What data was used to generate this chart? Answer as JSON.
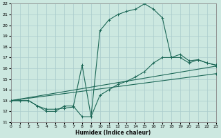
{
  "xlabel": "Humidex (Indice chaleur)",
  "xlim": [
    0,
    23
  ],
  "ylim": [
    11,
    22
  ],
  "xticks": [
    0,
    1,
    2,
    3,
    4,
    5,
    6,
    7,
    8,
    9,
    10,
    11,
    12,
    13,
    14,
    15,
    16,
    17,
    18,
    19,
    20,
    21,
    22,
    23
  ],
  "yticks": [
    11,
    12,
    13,
    14,
    15,
    16,
    17,
    18,
    19,
    20,
    21,
    22
  ],
  "bg_color": "#cce8e0",
  "grid_color": "#aacccc",
  "line_color": "#1a6655",
  "curve1_x": [
    0,
    1,
    2,
    3,
    4,
    5,
    6,
    7,
    8,
    9,
    10,
    11,
    12,
    13,
    14,
    15,
    16,
    17,
    18,
    19,
    20,
    21,
    22,
    23
  ],
  "curve1_y": [
    13,
    13,
    13,
    12.5,
    12,
    12,
    12.5,
    12.5,
    11.5,
    11.5,
    19.5,
    20.5,
    21,
    21.3,
    21.5,
    22,
    21.5,
    20.7,
    17,
    17,
    16.5,
    16.8,
    16.5,
    16.3
  ],
  "curve2_x": [
    0,
    1,
    2,
    3,
    4,
    5,
    6,
    7,
    8,
    9,
    10,
    11,
    12,
    13,
    14,
    15,
    16,
    17,
    18,
    19,
    20,
    21,
    22,
    23
  ],
  "curve2_y": [
    13,
    13,
    13,
    12.5,
    12.2,
    12.2,
    12.3,
    12.4,
    16.3,
    11.5,
    13.5,
    14.0,
    14.5,
    14.8,
    15.2,
    15.7,
    16.5,
    17.0,
    17.0,
    17.3,
    16.7,
    16.8,
    16.5,
    16.3
  ],
  "line3_x": [
    0,
    23
  ],
  "line3_y": [
    13,
    16.2
  ],
  "line4_x": [
    0,
    23
  ],
  "line4_y": [
    13,
    15.5
  ]
}
